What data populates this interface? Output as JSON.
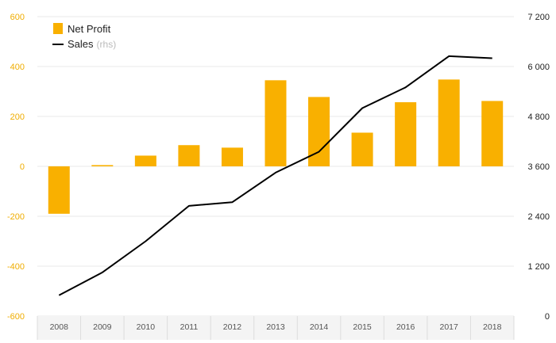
{
  "chart_data": {
    "type": "bar",
    "categories": [
      "2008",
      "2009",
      "2010",
      "2011",
      "2012",
      "2013",
      "2014",
      "2015",
      "2016",
      "2017",
      "2018"
    ],
    "series": [
      {
        "name": "Net Profit",
        "type": "bar",
        "axis": "left",
        "color": "#f9b000",
        "values": [
          -190,
          5,
          43,
          85,
          75,
          345,
          278,
          135,
          257,
          348,
          262
        ]
      },
      {
        "name": "Sales",
        "name_suffix": "(rhs)",
        "type": "line",
        "axis": "right",
        "color": "#000000",
        "values": [
          500,
          1050,
          1800,
          2650,
          2740,
          3450,
          3950,
          5000,
          5500,
          6250,
          6200
        ]
      }
    ],
    "left_axis": {
      "min": -600,
      "max": 600,
      "ticks": [
        "600",
        "400",
        "200",
        "0",
        "-200",
        "-400",
        "-600"
      ]
    },
    "right_axis": {
      "min": 0,
      "max": 7200,
      "ticks": [
        "7 200",
        "6 000",
        "4 800",
        "3 600",
        "2 400",
        "1 200",
        "0"
      ]
    },
    "grid": true,
    "legend_position": "top-left"
  }
}
